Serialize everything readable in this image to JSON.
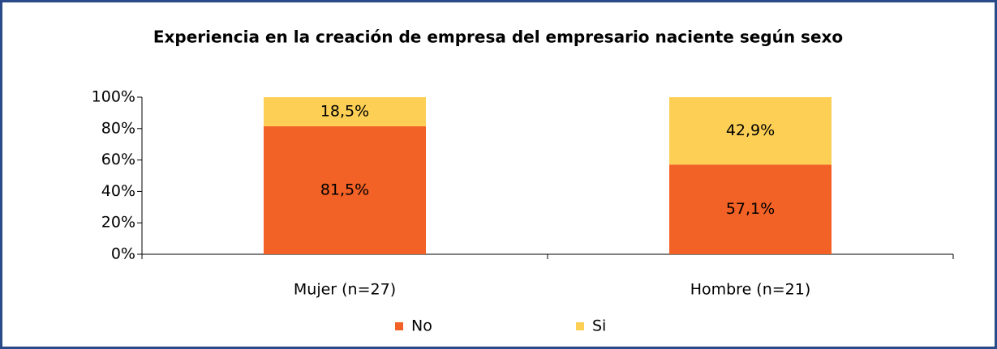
{
  "chart_data": {
    "type": "stacked_bar",
    "title": "Experiencia en la creación de empresa del empresario naciente según sexo",
    "categories": [
      "Mujer (n=27)",
      "Hombre (n=21)"
    ],
    "series": [
      {
        "name": "No",
        "color": "#f26125",
        "values": [
          81.5,
          57.1
        ],
        "value_labels": [
          "81,5%",
          "57,1%"
        ]
      },
      {
        "name": "Si",
        "color": "#fdd055",
        "values": [
          18.5,
          42.9
        ],
        "value_labels": [
          "18,5%",
          "42,9%"
        ]
      }
    ],
    "ylim": [
      0,
      100
    ],
    "yticks": [
      {
        "value": 0,
        "label": "0%"
      },
      {
        "value": 20,
        "label": "20%"
      },
      {
        "value": 40,
        "label": "40%"
      },
      {
        "value": 60,
        "label": "60%"
      },
      {
        "value": 80,
        "label": "80%"
      },
      {
        "value": 100,
        "label": "100%"
      }
    ],
    "legend": "bottom"
  }
}
